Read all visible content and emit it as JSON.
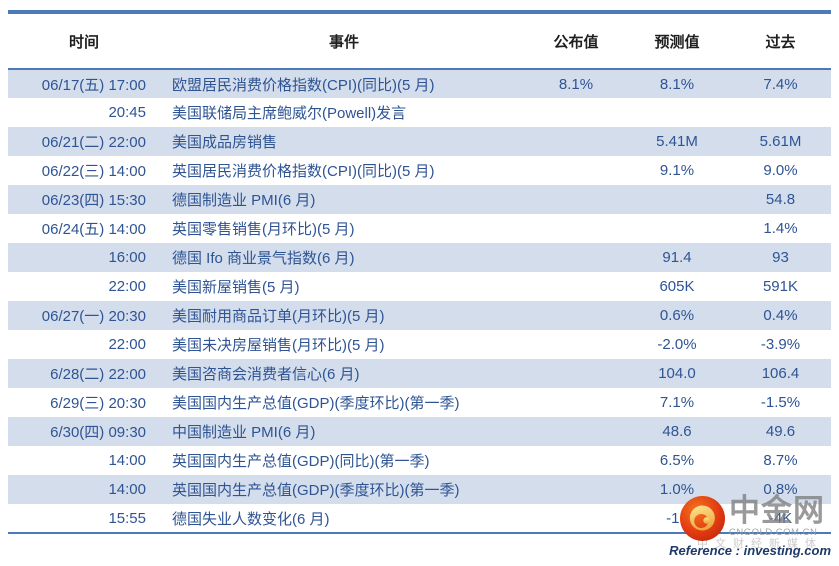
{
  "table": {
    "headers": [
      "时间",
      "事件",
      "公布值",
      "预测值",
      "过去"
    ],
    "rows": [
      {
        "time": "06/17(五) 17:00",
        "event": "欧盟居民消费价格指数(CPI)(同比)(5 月)",
        "published": "8.1%",
        "forecast": "8.1%",
        "past": "7.4%"
      },
      {
        "time": "20:45",
        "event": "美国联储局主席鲍威尔(Powell)发言",
        "published": "",
        "forecast": "",
        "past": ""
      },
      {
        "time": "06/21(二) 22:00",
        "event": "美国成品房销售",
        "published": "",
        "forecast": "5.41M",
        "past": "5.61M"
      },
      {
        "time": "06/22(三) 14:00",
        "event": "英国居民消费价格指数(CPI)(同比)(5 月)",
        "published": "",
        "forecast": "9.1%",
        "past": "9.0%"
      },
      {
        "time": "06/23(四) 15:30",
        "event": "德国制造业 PMI(6 月)",
        "published": "",
        "forecast": "",
        "past": "54.8"
      },
      {
        "time": "06/24(五) 14:00",
        "event": "英国零售销售(月环比)(5 月)",
        "published": "",
        "forecast": "",
        "past": "1.4%"
      },
      {
        "time": "16:00",
        "event": "德国 Ifo 商业景气指数(6 月)",
        "published": "",
        "forecast": "91.4",
        "past": "93"
      },
      {
        "time": "22:00",
        "event": "美国新屋销售(5 月)",
        "published": "",
        "forecast": "605K",
        "past": "591K"
      },
      {
        "time": "06/27(一) 20:30",
        "event": "美国耐用商品订单(月环比)(5 月)",
        "published": "",
        "forecast": "0.6%",
        "past": "0.4%"
      },
      {
        "time": "22:00",
        "event": "美国未决房屋销售(月环比)(5 月)",
        "published": "",
        "forecast": "-2.0%",
        "past": "-3.9%"
      },
      {
        "time": "6/28(二) 22:00",
        "event": "美国咨商会消费者信心(6 月)",
        "published": "",
        "forecast": "104.0",
        "past": "106.4"
      },
      {
        "time": "6/29(三) 20:30",
        "event": "美国国内生产总值(GDP)(季度环比)(第一季)",
        "published": "",
        "forecast": "7.1%",
        "past": "-1.5%"
      },
      {
        "time": "6/30(四) 09:30",
        "event": "中国制造业 PMI(6 月)",
        "published": "",
        "forecast": "48.6",
        "past": "49.6"
      },
      {
        "time": "14:00",
        "event": "英国国内生产总值(GDP)(同比)(第一季)",
        "published": "",
        "forecast": "6.5%",
        "past": "8.7%"
      },
      {
        "time": "14:00",
        "event": "英国国内生产总值(GDP)(季度环比)(第一季)",
        "published": "",
        "forecast": "1.0%",
        "past": "0.8%"
      },
      {
        "time": "15:55",
        "event": "德国失业人数变化(6 月)",
        "published": "",
        "forecast": "-15",
        "past": "-4K"
      }
    ]
  },
  "footer": {
    "reference": "Reference : investing.com"
  },
  "logo": {
    "brand": "中金网",
    "domain": "CNGOLD.COM.CN",
    "tagline": "中文财经新媒体"
  },
  "colors": {
    "accent_border": "#4a7ab8",
    "row_band": "#d3ddec",
    "data_text": "#2e5494",
    "logo_red": "#dd2e10",
    "logo_gold": "#f3bb4a"
  }
}
